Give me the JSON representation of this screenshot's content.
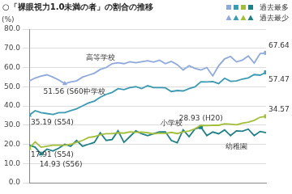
{
  "chart_data": {
    "type": "line",
    "title": "○「裸眼視力1.0未満の者」の割合の推移",
    "ylabel": "(%)",
    "categories": [
      null,
      null,
      null,
      null,
      null,
      null,
      null,
      null,
      null,
      null,
      null,
      null,
      null,
      null,
      null,
      null,
      null,
      null,
      null,
      null,
      null,
      null,
      null,
      null,
      null,
      null,
      null,
      null,
      null,
      null,
      null,
      null,
      null,
      null,
      null,
      null,
      null,
      null,
      null,
      null,
      null
    ],
    "ylim": [
      0,
      80
    ],
    "yticks": [
      {
        "value": 0,
        "label": "0.0"
      },
      {
        "value": 10,
        "label": "10.0"
      },
      {
        "value": 20,
        "label": "20.0"
      },
      {
        "value": 30,
        "label": "30.0"
      },
      {
        "value": 40,
        "label": "40.0"
      },
      {
        "value": 50,
        "label": "50.0"
      },
      {
        "value": 60,
        "label": "60.0"
      },
      {
        "value": 70,
        "label": "70.0"
      },
      {
        "value": 80,
        "label": "80.0"
      }
    ],
    "grid": true,
    "tick_labels": "y",
    "marker_key": [
      {
        "text": "過去最多",
        "marker": "square"
      },
      {
        "text": "過去最少",
        "marker": "triangle"
      }
    ],
    "series": [
      {
        "name": "高等学校",
        "color": "#8ea9db",
        "values": [
          53.0,
          54.5,
          55.5,
          56.2,
          55.0,
          53.5,
          51.56,
          52.5,
          53.0,
          55.0,
          56.0,
          57.0,
          59.0,
          60.0,
          62.0,
          62.5,
          62.0,
          63.0,
          62.5,
          63.0,
          63.5,
          62.8,
          63.8,
          62.0,
          63.2,
          61.5,
          58.7,
          60.9,
          59.5,
          58.7,
          60.0,
          55.6,
          60.9,
          64.5,
          65.8,
          62.9,
          63.8,
          66.0,
          62.3,
          67.23,
          67.64
        ],
        "annotations": [
          {
            "index": 40,
            "text": "67.64",
            "marker": "square"
          },
          {
            "index": 6,
            "text": "51.56 (S60)",
            "marker": "triangle"
          }
        ]
      },
      {
        "name": "中学校",
        "color": "#3c9bb3",
        "values": [
          35.19,
          37.5,
          36.5,
          36.0,
          35.5,
          36.5,
          36.5,
          37.5,
          38.5,
          40.0,
          41.5,
          42.5,
          44.5,
          46.0,
          47.0,
          49.0,
          48.5,
          49.5,
          50.0,
          49.0,
          50.5,
          49.5,
          49.5,
          49.4,
          47.5,
          48.0,
          47.8,
          49.0,
          49.9,
          52.6,
          52.5,
          52.7,
          51.6,
          54.4,
          52.8,
          53.0,
          54.0,
          54.6,
          56.3,
          56.0,
          57.47
        ],
        "annotations": [
          {
            "index": 40,
            "text": "57.47",
            "marker": "square"
          },
          {
            "index": 0,
            "text": "35.19 (S54)",
            "marker": "triangle"
          }
        ]
      },
      {
        "name": "小学校",
        "color": "#a3bf3a",
        "values": [
          17.91,
          21.3,
          18.5,
          19.0,
          19.5,
          19.5,
          19.5,
          20.0,
          21.0,
          22.0,
          23.5,
          24.0,
          25.0,
          25.5,
          25.5,
          26.0,
          25.8,
          26.5,
          26.3,
          26.4,
          26.0,
          25.4,
          25.8,
          25.6,
          26.2,
          25.6,
          26.5,
          26.9,
          28.1,
          29.9,
          29.7,
          29.9,
          29.9,
          30.7,
          30.5,
          30.2,
          31.0,
          31.5,
          32.5,
          34.1,
          34.57
        ],
        "annotations": [
          {
            "index": 40,
            "text": "34.57",
            "marker": "square"
          },
          {
            "index": 0,
            "text": "17.91 (S54)",
            "marker": "triangle"
          }
        ]
      },
      {
        "name": "幼稚園",
        "color": "#1f7f86",
        "values": [
          19.5,
          18.5,
          14.93,
          17.5,
          16.5,
          18.0,
          20.0,
          19.0,
          22.0,
          19.0,
          20.0,
          21.0,
          26.0,
          22.0,
          22.5,
          27.0,
          21.0,
          24.0,
          27.0,
          25.5,
          24.5,
          25.5,
          26.5,
          26.5,
          22.0,
          20.8,
          27.5,
          24.0,
          28.0,
          28.93,
          24.5,
          26.4,
          25.5,
          27.5,
          24.5,
          27.0,
          26.8,
          27.9,
          24.5,
          26.7,
          26.06
        ],
        "annotations": [
          {
            "index": 29,
            "text": "28.93 (H20)",
            "marker": "square"
          },
          {
            "index": 2,
            "text": "14.93 (S56)",
            "marker": "triangle"
          }
        ]
      }
    ]
  }
}
